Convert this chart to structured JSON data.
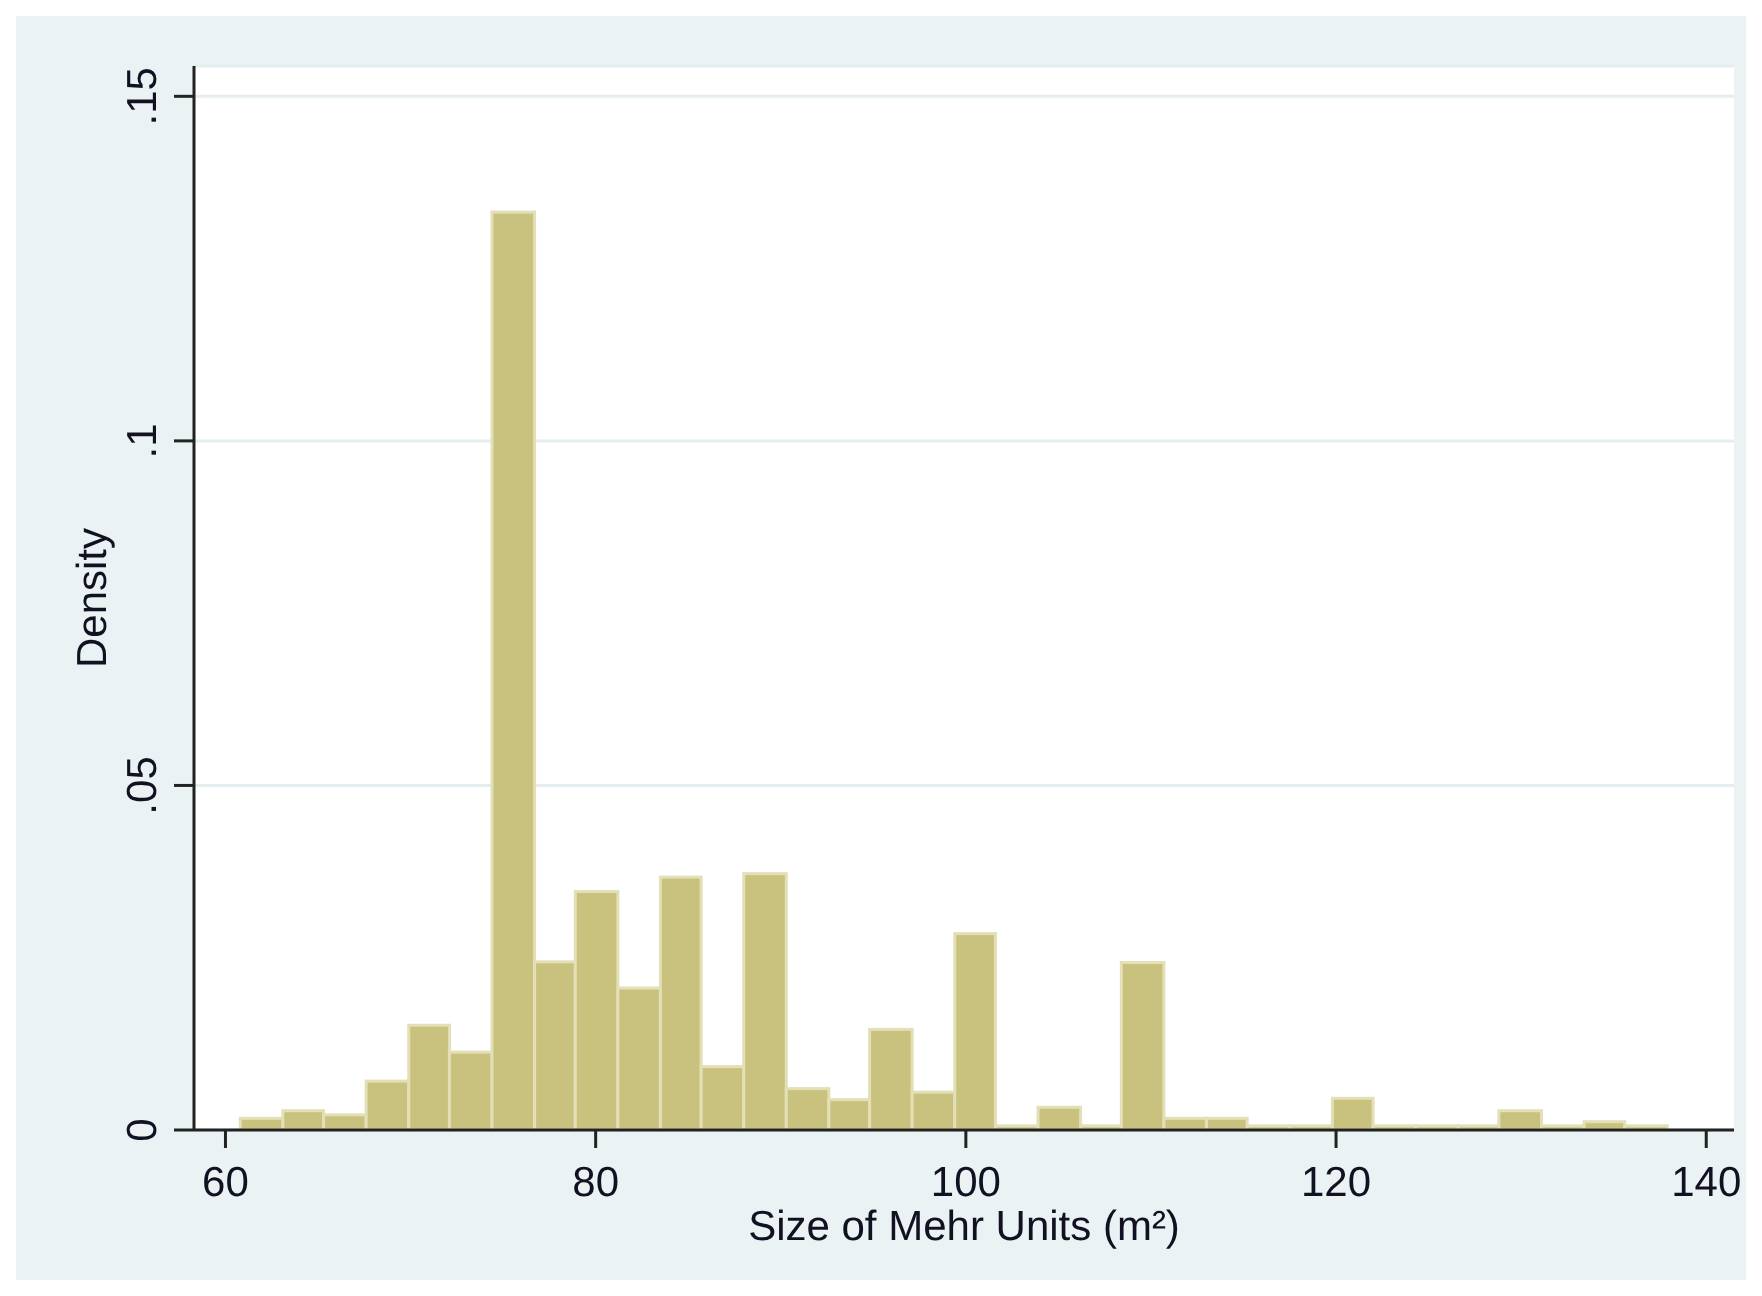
{
  "chart_data": {
    "type": "histogram",
    "xlabel": "Size of Mehr Units (m²)",
    "ylabel": "Density",
    "bins": [
      60.8,
      63.1,
      65.3,
      67.6,
      69.9,
      72.1,
      74.4,
      76.7,
      78.9,
      81.2,
      83.5,
      85.7,
      88.0,
      90.3,
      92.6,
      94.8,
      97.1,
      99.4,
      101.6,
      103.9,
      106.2,
      108.4,
      110.7,
      113.0,
      115.2,
      117.5,
      119.8,
      122.0,
      124.3,
      126.6,
      128.8,
      131.1,
      133.4,
      135.6,
      137.9
    ],
    "values": [
      0.0017,
      0.0028,
      0.0022,
      0.0071,
      0.0152,
      0.0113,
      0.1332,
      0.0244,
      0.0346,
      0.0206,
      0.0367,
      0.0092,
      0.0372,
      0.006,
      0.0044,
      0.0146,
      0.0055,
      0.0285,
      0.0006,
      0.0033,
      0.0006,
      0.0243,
      0.0017,
      0.0017,
      0.0006,
      0.0006,
      0.0046,
      0.0006,
      0.0006,
      0.0006,
      0.0028,
      0.0006,
      0.0012,
      0.0006
    ],
    "color": "#c9c27f",
    "xlim": [
      58.3,
      141.5
    ],
    "ylim": [
      0,
      0.1544
    ],
    "xticks": [
      60,
      80,
      100,
      120,
      140
    ],
    "yticks": [
      0,
      {
        "value": 0.05,
        "label": ".05"
      },
      {
        "value": 0.1,
        "label": ".1"
      },
      {
        "value": 0.15,
        "label": ".15"
      }
    ],
    "grid": "y"
  }
}
